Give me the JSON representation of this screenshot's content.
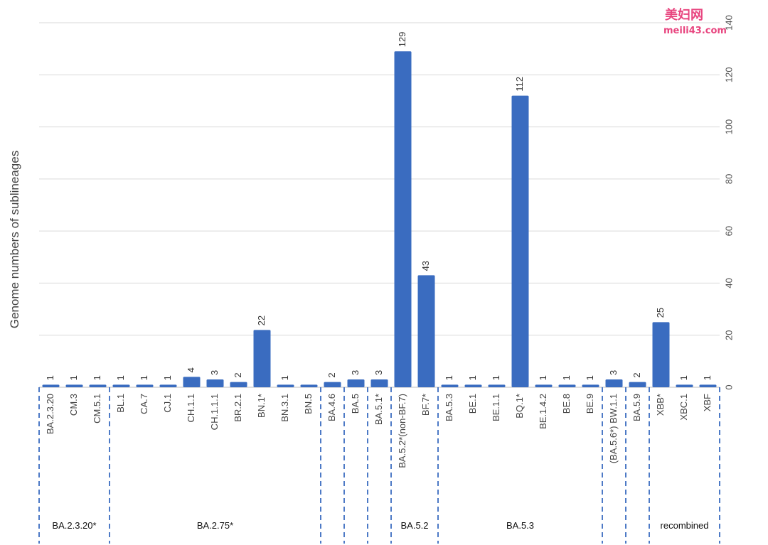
{
  "watermark": {
    "line1": "美妇网",
    "line2": "meili43.com"
  },
  "chart_data": {
    "type": "bar",
    "ylabel": "Genome numbers of sublineages",
    "xlabel": "",
    "ylim": [
      0,
      140
    ],
    "yticks": [
      0,
      20,
      40,
      60,
      80,
      100,
      120,
      140
    ],
    "y_axis_position": "right",
    "grid": true,
    "bar_color": "#3a6cc0",
    "categories": [
      "BA.2.3.20",
      "CM.3",
      "CM.5.1",
      "BL.1",
      "CA.7",
      "CJ.1",
      "CH.1.1",
      "CH.1.1.1",
      "BR.2.1",
      "BN.1*",
      "BN.3.1",
      "BN.5",
      "BA.4.6",
      "BA.5",
      "BA.5.1*",
      "BA.5.2*(non-BF.7)",
      "BF.7*",
      "BA.5.3",
      "BE.1",
      "BE.1.1",
      "BQ.1*",
      "BE.1.4.2",
      "BE.8",
      "BE.9",
      "(BA.5.6*) BW.1.1",
      "BA.5.9",
      "XBB*",
      "XBC.1",
      "XBF"
    ],
    "values": [
      1,
      1,
      1,
      1,
      1,
      1,
      4,
      3,
      2,
      22,
      1,
      1,
      2,
      3,
      3,
      129,
      43,
      1,
      1,
      1,
      112,
      1,
      1,
      1,
      3,
      2,
      25,
      1,
      1
    ],
    "data_labels": [
      "1",
      "1",
      "1",
      "1",
      "1",
      "1",
      "4",
      "3",
      "2",
      "22",
      "1",
      "",
      "2",
      "3",
      "3",
      "129",
      "43",
      "1",
      "1",
      "1",
      "112",
      "1",
      "1",
      "1",
      "3",
      "2",
      "25",
      "1",
      "1"
    ],
    "groups": [
      {
        "label": "BA.2.3.20*",
        "start": 0,
        "end": 2
      },
      {
        "label": "BA.2.75*",
        "start": 3,
        "end": 11
      },
      {
        "label": "",
        "start": 12,
        "end": 12
      },
      {
        "label": "",
        "start": 13,
        "end": 13
      },
      {
        "label": "",
        "start": 14,
        "end": 14
      },
      {
        "label": "BA.5.2",
        "start": 15,
        "end": 16
      },
      {
        "label": "BA.5.3",
        "start": 17,
        "end": 23
      },
      {
        "label": "",
        "start": 24,
        "end": 24
      },
      {
        "label": "",
        "start": 25,
        "end": 25
      },
      {
        "label": "recombined",
        "start": 26,
        "end": 28
      }
    ]
  }
}
